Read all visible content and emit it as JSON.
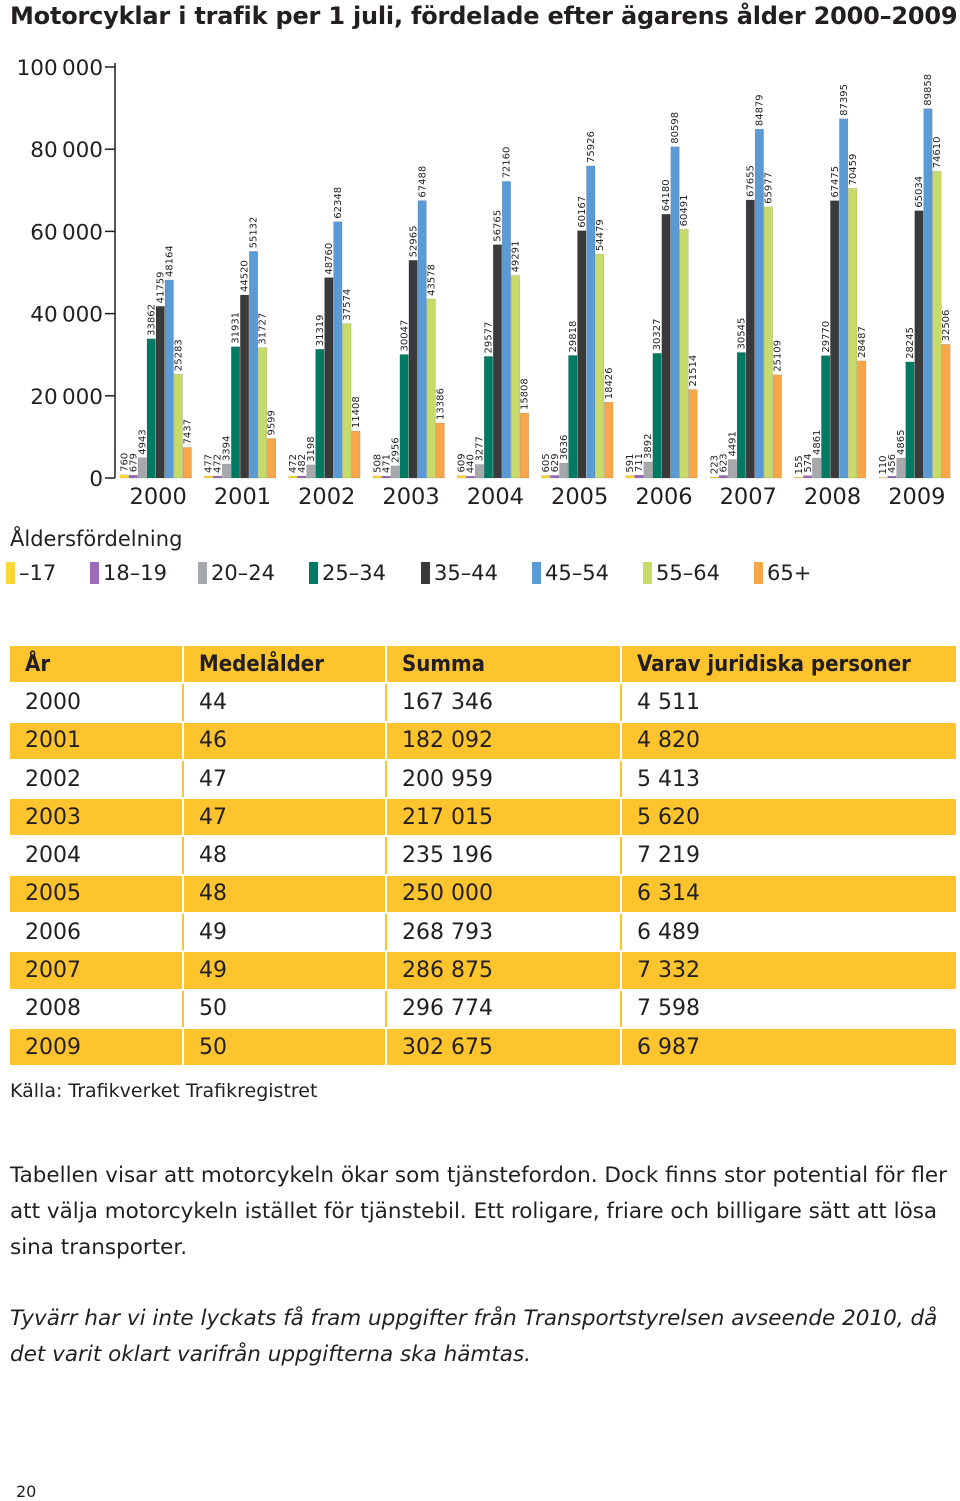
{
  "chart_data": {
    "type": "bar",
    "title": "Motorcyklar i trafik per 1 juli, fördelade efter ägarens ålder 2000–2009",
    "categories": [
      "2000",
      "2001",
      "2002",
      "2003",
      "2004",
      "2005",
      "2006",
      "2007",
      "2008",
      "2009"
    ],
    "ylim": [
      0,
      100000
    ],
    "yticks": [
      0,
      20000,
      40000,
      60000,
      80000,
      100000
    ],
    "ytick_labels": [
      "0",
      "20 000",
      "40 000",
      "60 000",
      "80 000",
      "100 000"
    ],
    "grid": false,
    "legend_title": "Åldersfördelning",
    "legend_position": "bottom",
    "series": [
      {
        "name": "–17",
        "color": "#fdd835",
        "values": [
          760,
          477,
          472,
          508,
          609,
          605,
          591,
          223,
          155,
          110
        ]
      },
      {
        "name": "18–19",
        "color": "#9b6bb8",
        "values": [
          679,
          472,
          482,
          471,
          440,
          629,
          711,
          623,
          574,
          456
        ]
      },
      {
        "name": "20–24",
        "color": "#a6a8ab",
        "values": [
          4943,
          3394,
          3198,
          2956,
          3277,
          3636,
          3892,
          4491,
          4861,
          4865
        ]
      },
      {
        "name": "25–34",
        "color": "#007a63",
        "values": [
          33862,
          31931,
          31319,
          30047,
          29577,
          29818,
          30327,
          30545,
          29770,
          28245
        ]
      },
      {
        "name": "35–44",
        "color": "#3a3a3c",
        "values": [
          41759,
          44520,
          48760,
          52965,
          56765,
          60167,
          64180,
          67655,
          67475,
          65034
        ]
      },
      {
        "name": "45–54",
        "color": "#5b9bd5",
        "values": [
          48164,
          55132,
          62348,
          67488,
          72160,
          75926,
          80598,
          84879,
          87395,
          89858
        ]
      },
      {
        "name": "55–64",
        "color": "#c8da6a",
        "values": [
          25283,
          31727,
          37574,
          43578,
          49291,
          54479,
          60491,
          65977,
          70459,
          74610
        ]
      },
      {
        "name": "65+",
        "color": "#f7a64a",
        "values": [
          7437,
          9599,
          11408,
          13386,
          15808,
          18426,
          21514,
          25109,
          28487,
          32506
        ]
      }
    ]
  },
  "table": {
    "headers": [
      "År",
      "Medelålder",
      "Summa",
      "Varav juridiska personer"
    ],
    "rows": [
      [
        "2000",
        "44",
        "167 346",
        "4 511"
      ],
      [
        "2001",
        "46",
        "182 092",
        "4 820"
      ],
      [
        "2002",
        "47",
        "200 959",
        "5 413"
      ],
      [
        "2003",
        "47",
        "217 015",
        "5 620"
      ],
      [
        "2004",
        "48",
        "235 196",
        "7 219"
      ],
      [
        "2005",
        "48",
        "250 000",
        "6 314"
      ],
      [
        "2006",
        "49",
        "268 793",
        "6 489"
      ],
      [
        "2007",
        "49",
        "286 875",
        "7 332"
      ],
      [
        "2008",
        "50",
        "296 774",
        "7 598"
      ],
      [
        "2009",
        "50",
        "302 675",
        "6 987"
      ]
    ]
  },
  "source": "Källa: Trafikverket Trafikregistret",
  "paragraph": "Tabellen visar att motorcykeln ökar som tjänstefordon. Dock finns stor potential för fler att välja motorcykeln istället för tjänstebil. Ett roligare, friare och billigare sätt att lösa sina transporter.",
  "note": "Tyvärr har vi inte lyckats få fram uppgifter från Transportstyrelsen avseende 2010, då det varit oklart varifrån uppgifterna ska hämtas.",
  "page_number": "20",
  "colors": {
    "accent": "#fdc42e",
    "text": "#231f20"
  }
}
